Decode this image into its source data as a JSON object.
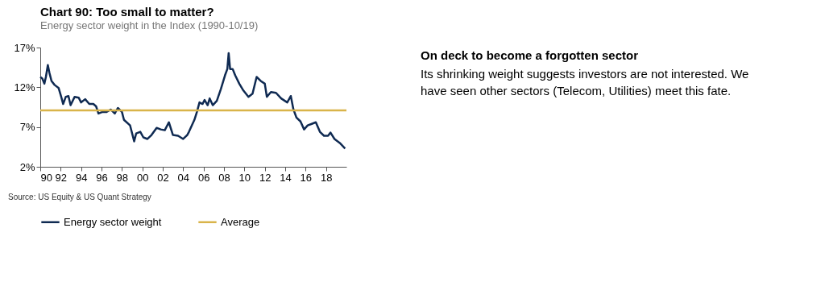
{
  "chart_data": {
    "type": "line",
    "title": "Chart 90: Too small to matter?",
    "subtitle": "Energy sector weight in the Index (1990-10/19)",
    "x": [
      1990,
      1990.2,
      1990.4,
      1990.55,
      1990.74,
      1990.9,
      1991.1,
      1991.4,
      1991.8,
      1992.05,
      1992.24,
      1992.5,
      1992.76,
      1992.97,
      1993.37,
      1993.76,
      1994.0,
      1994.4,
      1994.8,
      1995.2,
      1995.47,
      1995.7,
      1996.1,
      1996.5,
      1996.9,
      1997.3,
      1997.6,
      1998.0,
      1998.2,
      1998.8,
      1999.2,
      1999.4,
      1999.8,
      2000.1,
      2000.5,
      2000.9,
      2001.4,
      2001.8,
      2002.2,
      2002.6,
      2003.0,
      2003.5,
      2004.0,
      2004.4,
      2004.57,
      2005.1,
      2005.35,
      2005.6,
      2005.9,
      2006.1,
      2006.4,
      2006.6,
      2006.9,
      2007.3,
      2007.7,
      2008.1,
      2008.33,
      2008.46,
      2008.6,
      2008.85,
      2009.1,
      2009.5,
      2009.9,
      2010.4,
      2010.8,
      2011.2,
      2011.6,
      2012.0,
      2012.2,
      2012.6,
      2013.1,
      2013.6,
      2014.2,
      2014.55,
      2014.8,
      2015.1,
      2015.5,
      2015.85,
      2016.2,
      2016.6,
      2017.0,
      2017.4,
      2017.8,
      2018.2,
      2018.44,
      2018.83,
      2019.35,
      2019.87
    ],
    "series": [
      {
        "name": "Energy sector weight",
        "color": "#0f2a52",
        "values": [
          13.3,
          13.1,
          12.45,
          13.3,
          14.8,
          13.8,
          12.8,
          12.3,
          11.9,
          10.8,
          9.9,
          10.8,
          10.9,
          9.75,
          10.8,
          10.7,
          10.1,
          10.5,
          9.9,
          9.9,
          9.6,
          8.7,
          8.9,
          8.9,
          9.2,
          8.7,
          9.4,
          8.9,
          7.9,
          7.2,
          5.2,
          6.2,
          6.4,
          5.7,
          5.5,
          6.0,
          6.9,
          6.7,
          6.6,
          7.6,
          6.0,
          5.9,
          5.5,
          6.0,
          6.4,
          7.9,
          8.9,
          10.1,
          9.9,
          10.4,
          9.75,
          10.6,
          9.75,
          10.3,
          11.8,
          13.5,
          14.3,
          16.3,
          14.3,
          14.3,
          13.5,
          12.45,
          11.6,
          10.8,
          11.2,
          13.3,
          12.8,
          12.45,
          10.8,
          11.4,
          11.3,
          10.6,
          10.1,
          10.9,
          9.25,
          8.2,
          7.7,
          6.7,
          7.2,
          7.4,
          7.6,
          6.4,
          5.9,
          5.9,
          6.3,
          5.5,
          5.0,
          4.3
        ]
      }
    ],
    "ref_lines": [
      {
        "axis": "y",
        "value": 9.1,
        "label": "Average",
        "color": "#d9b44a"
      }
    ],
    "xlim": [
      1990,
      2020
    ],
    "xticks": [
      {
        "value": 1990,
        "label": "90"
      },
      {
        "value": 1992,
        "label": "92"
      },
      {
        "value": 1994,
        "label": "94"
      },
      {
        "value": 1996,
        "label": "96"
      },
      {
        "value": 1998,
        "label": "98"
      },
      {
        "value": 2000,
        "label": "00"
      },
      {
        "value": 2002,
        "label": "02"
      },
      {
        "value": 2004,
        "label": "04"
      },
      {
        "value": 2006,
        "label": "06"
      },
      {
        "value": 2008,
        "label": "08"
      },
      {
        "value": 2010,
        "label": "10"
      },
      {
        "value": 2012,
        "label": "12"
      },
      {
        "value": 2014,
        "label": "14"
      },
      {
        "value": 2016,
        "label": "16"
      },
      {
        "value": 2018,
        "label": "18"
      }
    ],
    "ylim": [
      2,
      17
    ],
    "yticks": [
      {
        "value": 2,
        "label": "2%"
      },
      {
        "value": 7,
        "label": "7%"
      },
      {
        "value": 12,
        "label": "12%"
      },
      {
        "value": 17,
        "label": "17%"
      }
    ],
    "grid": false,
    "legend": "bottom",
    "marker": "none",
    "line_style": "solid",
    "annotations": [
      "Source: US Equity & US Quant Strategy",
      "On deck to become a forgotten sector",
      "Its shrinking weight suggests investors are not interested. We have seen other sectors (Telecom, Utilities) meet this fate."
    ]
  }
}
